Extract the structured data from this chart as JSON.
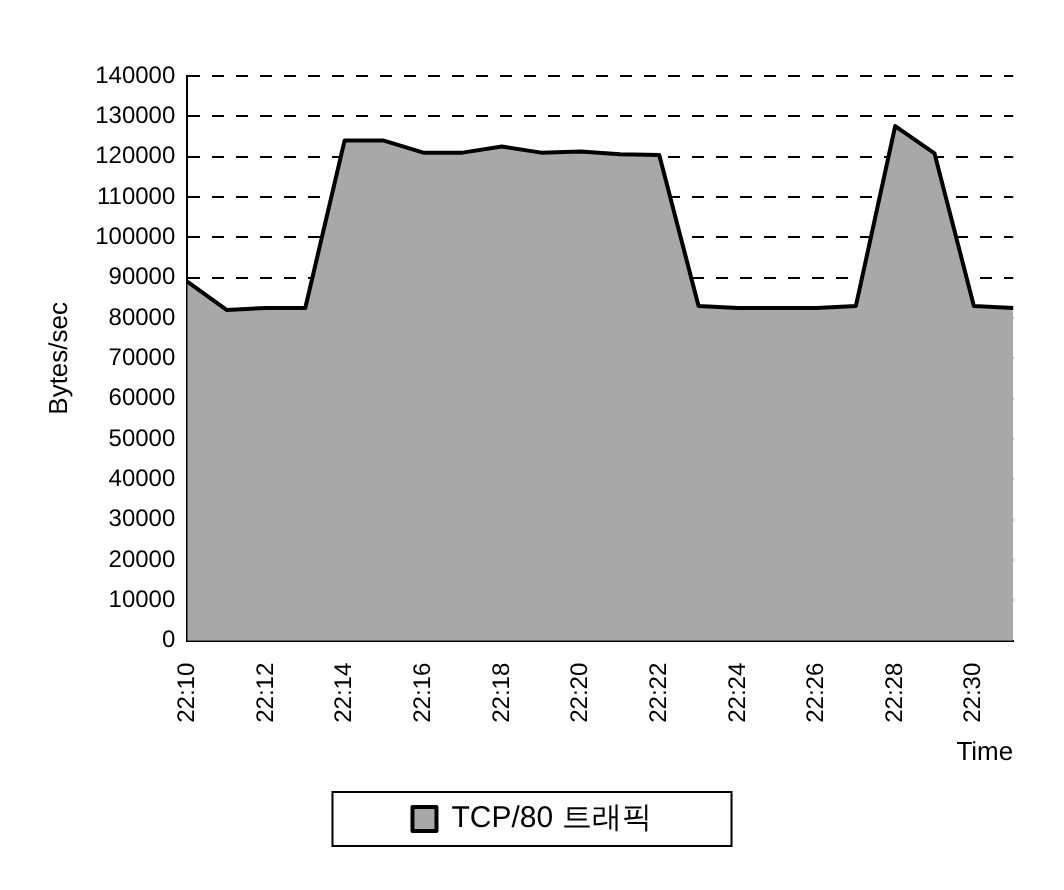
{
  "chart_data": {
    "type": "area",
    "xlabel": "Time",
    "ylabel": "Bytes/sec",
    "categories": [
      "22:10",
      null,
      "22:12",
      null,
      "22:14",
      null,
      "22:16",
      null,
      "22:18",
      null,
      "22:20",
      null,
      "22:22",
      null,
      "22:24",
      null,
      "22:26",
      null,
      "22:28",
      null,
      "22:30",
      null
    ],
    "series": [
      {
        "name": "TCP/80 트래픽",
        "color": "#a8a8a8",
        "values": [
          89000,
          82000,
          82500,
          82500,
          124000,
          124000,
          121000,
          121000,
          122500,
          121000,
          121300,
          120600,
          120400,
          83000,
          82500,
          82500,
          82500,
          83000,
          127600,
          120800,
          83000,
          82500
        ]
      }
    ],
    "ylim": [
      0,
      140000
    ],
    "yticks": [
      0,
      10000,
      20000,
      30000,
      40000,
      50000,
      60000,
      70000,
      80000,
      90000,
      100000,
      110000,
      120000,
      130000,
      140000
    ],
    "grid": "y",
    "legend": "bottom"
  }
}
